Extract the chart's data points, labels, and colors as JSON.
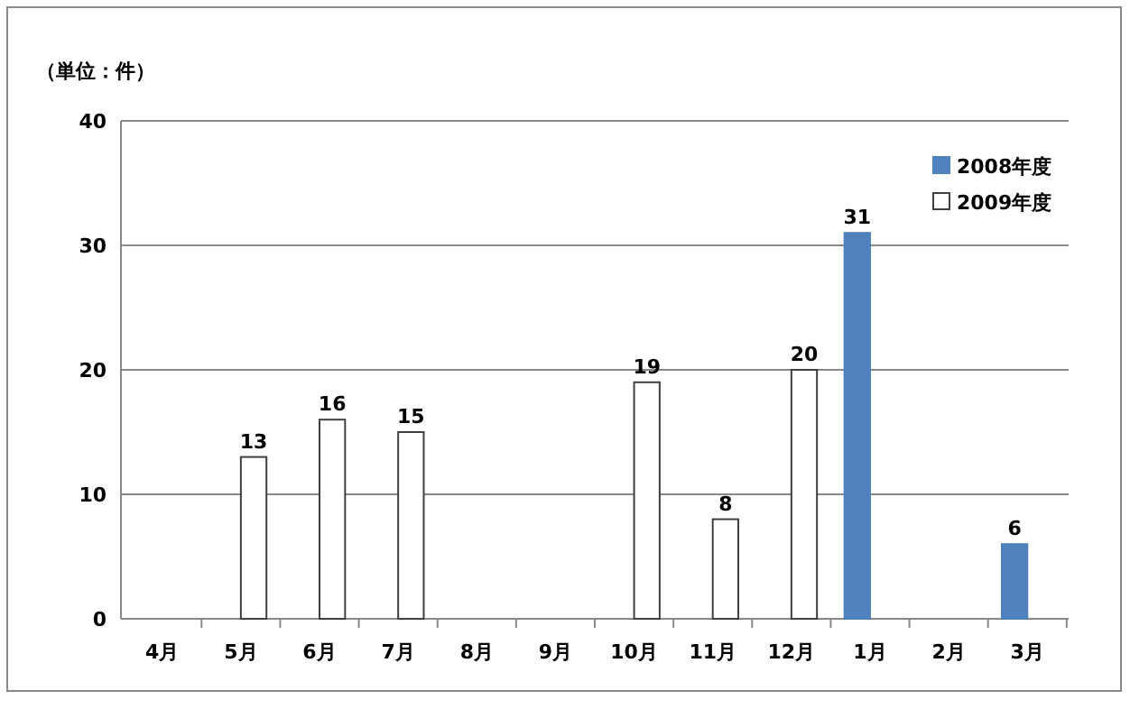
{
  "chart_data": {
    "type": "bar",
    "ylabel": "（単位：件）",
    "categories": [
      "4月",
      "5月",
      "6月",
      "7月",
      "8月",
      "9月",
      "10月",
      "11月",
      "12月",
      "1月",
      "2月",
      "3月"
    ],
    "series": [
      {
        "name": "2008年度",
        "color": "#4f81bd",
        "values": [
          null,
          null,
          null,
          null,
          null,
          null,
          null,
          null,
          null,
          31,
          null,
          6
        ]
      },
      {
        "name": "2009年度",
        "color": "#ffffff",
        "values": [
          null,
          13,
          16,
          15,
          null,
          null,
          19,
          8,
          20,
          null,
          null,
          null
        ]
      }
    ],
    "ylim": [
      0,
      40
    ],
    "yticks": [
      0,
      10,
      20,
      30,
      40
    ],
    "grid": "y",
    "legend": "top right",
    "data_labels": true
  }
}
